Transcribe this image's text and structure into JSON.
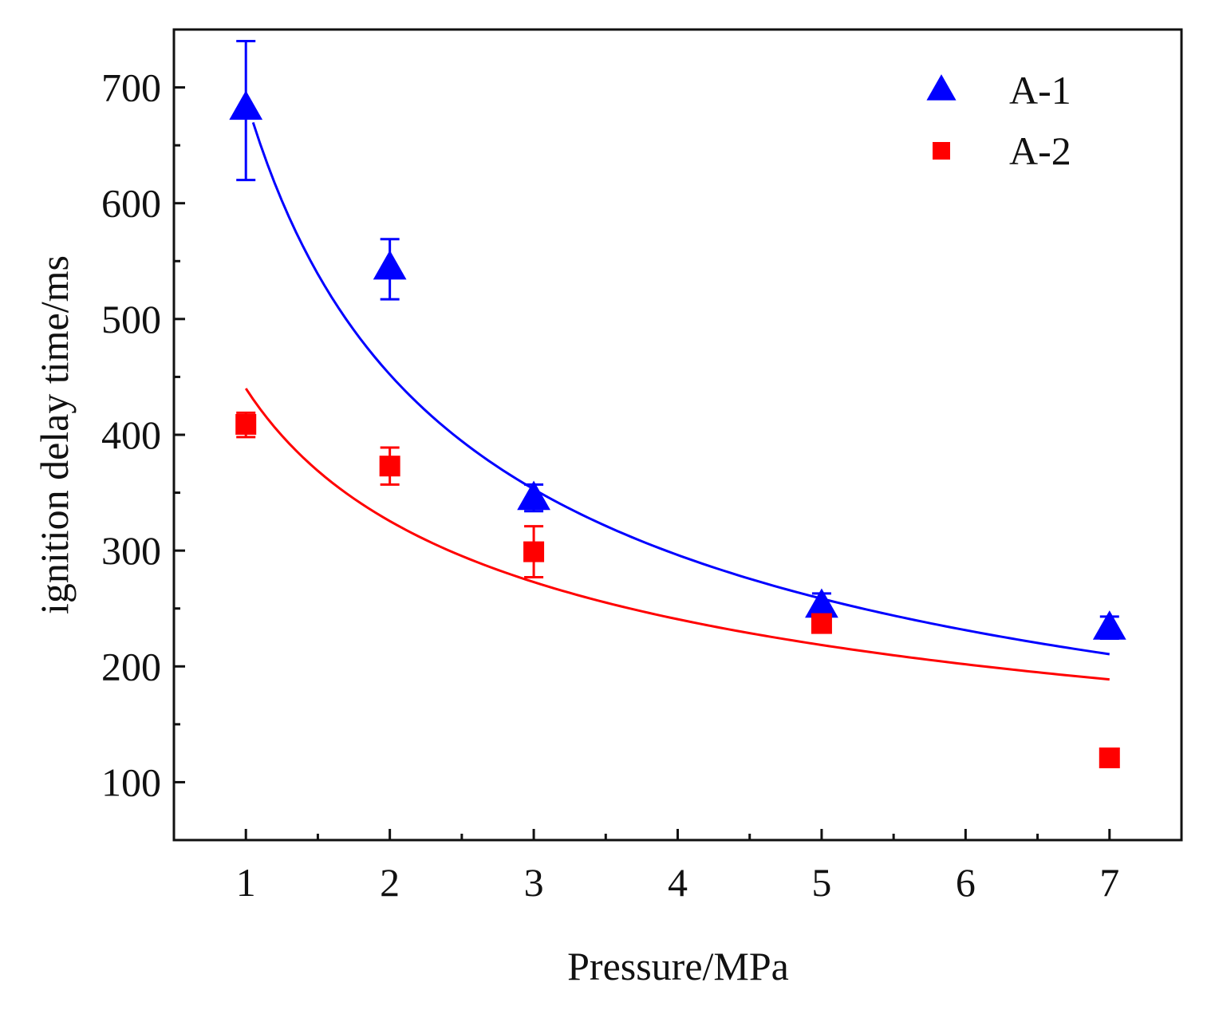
{
  "chart_data": {
    "type": "scatter",
    "title": "",
    "xlabel": "Pressure/MPa",
    "ylabel": "ignition delay time/ms",
    "xlim": [
      0.5,
      7.5
    ],
    "ylim": [
      50,
      750
    ],
    "xticks": [
      1,
      2,
      3,
      4,
      5,
      6,
      7
    ],
    "yticks": [
      100,
      200,
      300,
      400,
      500,
      600,
      700
    ],
    "x_minor_ticks": [
      1.5,
      2.5,
      3.5,
      4.5,
      5.5,
      6.5
    ],
    "y_minor_ticks": [
      150,
      250,
      350,
      450,
      550,
      650
    ],
    "grid": false,
    "legend_position": "top-right",
    "series": [
      {
        "name": "A-1",
        "color": "#0000ff",
        "marker": "triangle",
        "x": [
          1,
          2,
          3,
          5,
          7
        ],
        "y": [
          682,
          544,
          345,
          252,
          233
        ],
        "err_low": [
          620,
          517,
          334,
          240,
          224
        ],
        "err_high": [
          740,
          569,
          357,
          263,
          243
        ],
        "fit": {
          "x_start": 1.05,
          "x_end": 7,
          "y_at_1": 690,
          "exponent": -0.61
        }
      },
      {
        "name": "A-2",
        "color": "#ff0000",
        "marker": "square",
        "x": [
          1,
          2,
          3,
          5,
          7
        ],
        "y": [
          409,
          373,
          299,
          237,
          121
        ],
        "err_low": [
          398,
          357,
          277,
          230,
          121
        ],
        "err_high": [
          419,
          389,
          321,
          245,
          121
        ],
        "fit": {
          "x_start": 1.0,
          "x_end": 7,
          "y_at_1": 440,
          "exponent": -0.435
        }
      }
    ]
  }
}
